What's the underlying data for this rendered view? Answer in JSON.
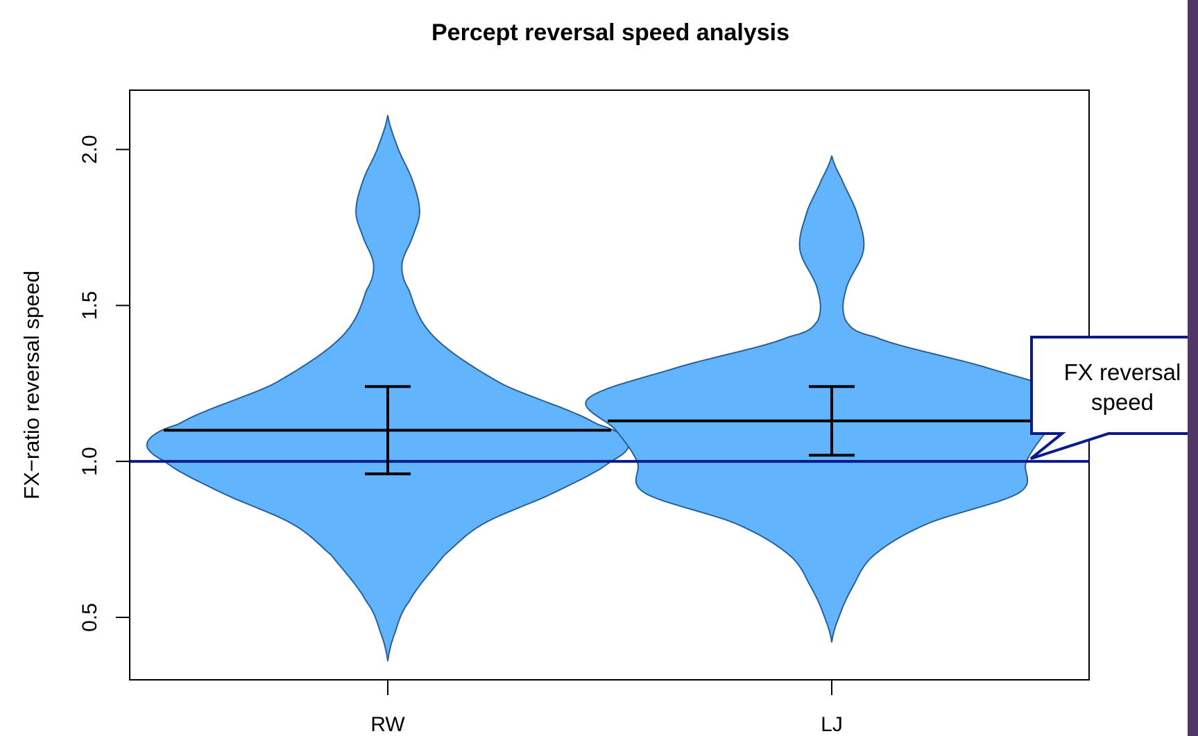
{
  "chart_data": {
    "type": "violin",
    "title": "Percept reversal speed analysis",
    "xlabel": "",
    "ylabel": "FX−ratio reversal speed",
    "categories": [
      "RW",
      "LJ"
    ],
    "yticks": [
      "0.5",
      "1.0",
      "1.5",
      "2.0"
    ],
    "ylim": [
      0.3,
      2.19
    ],
    "grid": false,
    "fill_color": "#62b5fd",
    "outline_color": "#2a5f96",
    "violins": [
      {
        "category": "RW",
        "mean": 1.1,
        "ci_low": 0.96,
        "ci_high": 1.24,
        "range": [
          0.36,
          2.11
        ],
        "density_profile": [
          [
            0.36,
            0.0
          ],
          [
            0.45,
            0.02
          ],
          [
            0.55,
            0.06
          ],
          [
            0.7,
            0.16
          ],
          [
            0.8,
            0.27
          ],
          [
            0.9,
            0.47
          ],
          [
            1.0,
            0.63
          ],
          [
            1.06,
            0.68
          ],
          [
            1.12,
            0.59
          ],
          [
            1.25,
            0.32
          ],
          [
            1.4,
            0.13
          ],
          [
            1.55,
            0.06
          ],
          [
            1.63,
            0.04
          ],
          [
            1.72,
            0.07
          ],
          [
            1.8,
            0.09
          ],
          [
            1.9,
            0.07
          ],
          [
            2.0,
            0.03
          ],
          [
            2.11,
            0.0
          ]
        ]
      },
      {
        "category": "LJ",
        "mean": 1.13,
        "ci_low": 1.02,
        "ci_high": 1.24,
        "range": [
          0.42,
          1.98
        ],
        "density_profile": [
          [
            0.42,
            0.0
          ],
          [
            0.5,
            0.02
          ],
          [
            0.6,
            0.06
          ],
          [
            0.7,
            0.12
          ],
          [
            0.8,
            0.27
          ],
          [
            0.9,
            0.53
          ],
          [
            1.0,
            0.55
          ],
          [
            1.1,
            0.61
          ],
          [
            1.2,
            0.69
          ],
          [
            1.3,
            0.44
          ],
          [
            1.4,
            0.12
          ],
          [
            1.45,
            0.04
          ],
          [
            1.55,
            0.04
          ],
          [
            1.68,
            0.09
          ],
          [
            1.8,
            0.07
          ],
          [
            1.9,
            0.03
          ],
          [
            1.98,
            0.0
          ]
        ]
      }
    ],
    "reference_line": {
      "y": 1.0,
      "color": "#0a1a8a"
    },
    "annotation": {
      "lines": [
        "FX reversal",
        "speed"
      ],
      "border_color": "#0a1a8a",
      "points_to_y": 1.0
    }
  }
}
